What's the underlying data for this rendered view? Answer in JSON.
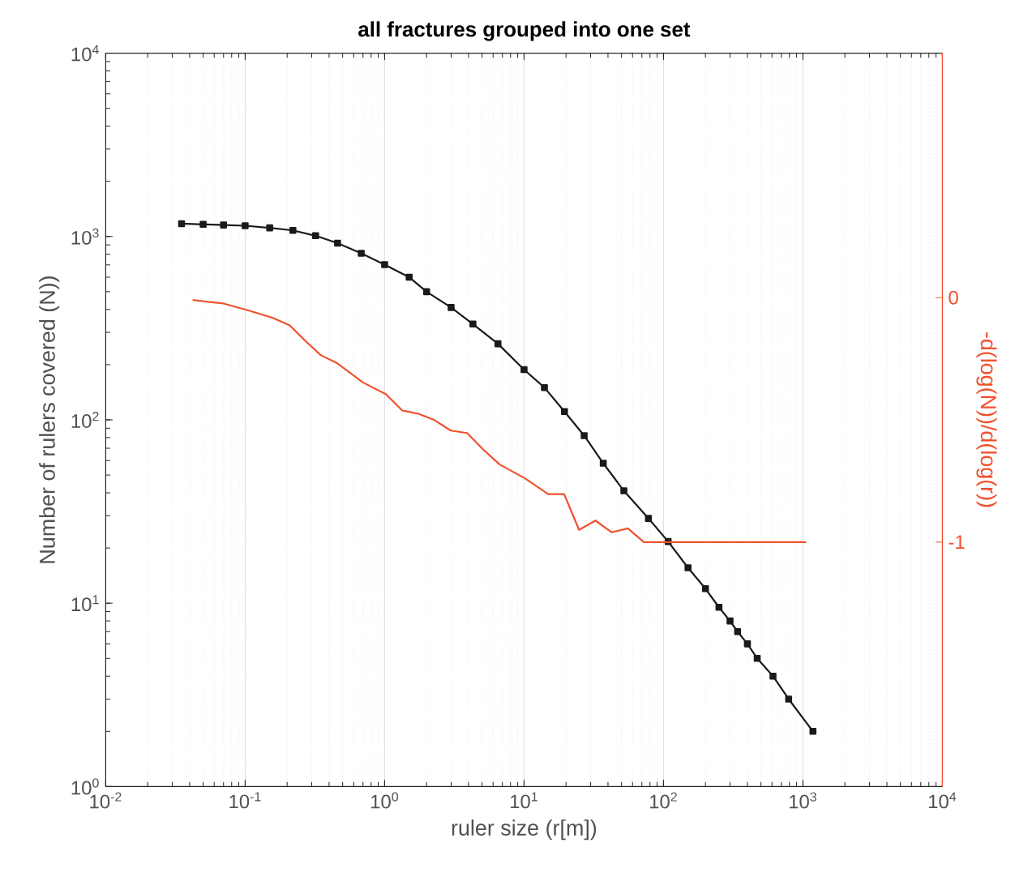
{
  "chart_data": {
    "type": "line",
    "title": "all fractures grouped into one set",
    "xlabel": "ruler size (r[m])",
    "ylabel": "Number of rulers covered (N))",
    "y2label": "-d(log(N))/d(log(r))",
    "log": "xy",
    "grid": "x",
    "line_style": "solid",
    "xlim": [
      0.01,
      10000
    ],
    "ylim": [
      1,
      10000
    ],
    "y2lim": [
      -2,
      1
    ],
    "xticks": [
      {
        "value": 0.01,
        "label": "10$^{-2}$"
      },
      {
        "value": 0.1,
        "label": "10$^{-1}$"
      },
      {
        "value": 1,
        "label": "10$^{0}$"
      },
      {
        "value": 10,
        "label": "10$^{1}$"
      },
      {
        "value": 100,
        "label": "10$^{2}$"
      },
      {
        "value": 1000,
        "label": "10$^{3}$"
      },
      {
        "value": 10000,
        "label": "10$^{4}$"
      }
    ],
    "yticks": [
      {
        "value": 1,
        "label": "10$^{0}$"
      },
      {
        "value": 10,
        "label": "10$^{1}$"
      },
      {
        "value": 100,
        "label": "10$^{2}$"
      },
      {
        "value": 1000,
        "label": "10$^{3}$"
      },
      {
        "value": 10000,
        "label": "10$^{4}$"
      }
    ],
    "y2ticks": [
      -1,
      0
    ],
    "series": [
      {
        "color": "#1a1a1a",
        "marker": "square",
        "x": [
          0.035,
          0.05,
          0.07,
          0.1,
          0.15,
          0.22,
          0.32,
          0.46,
          0.68,
          1.0,
          1.5,
          2.0,
          3.0,
          4.3,
          6.5,
          10,
          14,
          19.5,
          27,
          37,
          52,
          78,
          108,
          150,
          200,
          250,
          300,
          340,
          400,
          470,
          610,
          790,
          1180
        ],
        "values": [
          1175,
          1165,
          1155,
          1145,
          1115,
          1080,
          1010,
          920,
          810,
          703,
          600,
          500,
          410,
          333,
          260,
          188,
          150,
          111,
          82,
          58,
          41,
          29,
          21.7,
          15.6,
          12,
          9.5,
          8,
          7,
          6,
          5,
          4,
          3,
          2
        ]
      },
      {
        "color": "#f0502d",
        "marker": "none",
        "axis": "y2",
        "x": [
          0.042,
          0.07,
          0.102,
          0.157,
          0.209,
          0.268,
          0.35,
          0.457,
          0.7,
          1.02,
          1.34,
          1.75,
          2.28,
          2.98,
          3.9,
          5.09,
          6.66,
          10.2,
          14.9,
          19.4,
          24.8,
          32.5,
          42.4,
          55.5,
          72.4,
          1054
        ],
        "values": [
          -0.01,
          -0.024,
          -0.05,
          -0.082,
          -0.114,
          -0.175,
          -0.236,
          -0.268,
          -0.347,
          -0.395,
          -0.462,
          -0.475,
          -0.501,
          -0.544,
          -0.554,
          -0.621,
          -0.682,
          -0.74,
          -0.804,
          -0.804,
          -0.95,
          -0.912,
          -0.96,
          -0.944,
          -1.0,
          -1.0
        ]
      }
    ]
  }
}
